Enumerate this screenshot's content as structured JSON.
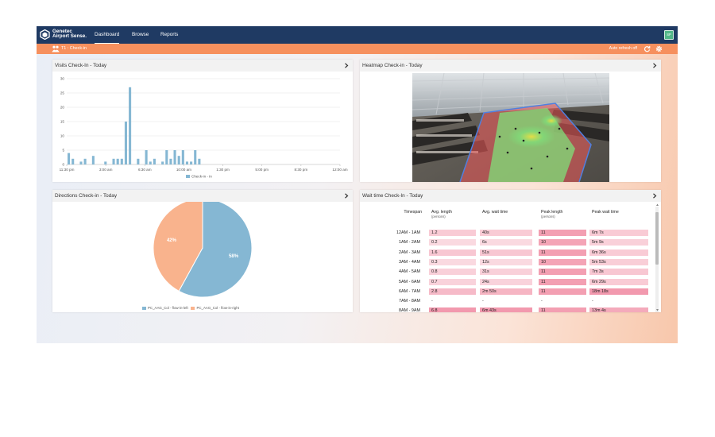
{
  "app": {
    "logo_line1": "Genetec",
    "logo_line2": "Airport Sense.",
    "nav": [
      "Dashboard",
      "Browse",
      "Reports"
    ],
    "active_nav": "Dashboard",
    "avatar": "SP",
    "subtitle": "T1 : Check-in",
    "auto_refresh": "Auto refresh off"
  },
  "colors": {
    "topbar": "#1f3a63",
    "subbar": "#f6905e",
    "bar": "#85b7d3",
    "pie_left": "#85b7d3",
    "pie_right": "#f9b38d"
  },
  "panels": {
    "visits_title": "Visits Check-In - Today",
    "heatmap_title": "Heatmap Check-in - Today",
    "directions_title": "Directions Check-in - Today",
    "wait_title": "Wait time Check-In - Today"
  },
  "chart_data": [
    {
      "type": "bar",
      "title": "Visits Check-In - Today",
      "yticks": [
        "0",
        "5",
        "10",
        "15",
        "20",
        "25",
        "30"
      ],
      "ylim": [
        0,
        30
      ],
      "xticks": [
        "11:30 pm",
        "3:00 am",
        "6:30 am",
        "10:00 am",
        "1:30 pm",
        "5:00 pm",
        "8:30 pm",
        "12:00 am"
      ],
      "grid": true,
      "legend_position": "bottom",
      "series": [
        {
          "name": "Check-in - in",
          "values": [
            4,
            2,
            0,
            1,
            2,
            0,
            3,
            0,
            0,
            1,
            0,
            2,
            2,
            2,
            15,
            27,
            0,
            2,
            0,
            5,
            1,
            2,
            0,
            1,
            5,
            2,
            5,
            3,
            5,
            1,
            1,
            5,
            2,
            0,
            0,
            0,
            0,
            0,
            0,
            0,
            0,
            0,
            0,
            0,
            0,
            0,
            0,
            0,
            0,
            0,
            0,
            0,
            0,
            0,
            0,
            0,
            0,
            0,
            0,
            0,
            0,
            0,
            0,
            0,
            0,
            0,
            0
          ]
        }
      ]
    },
    {
      "type": "pie",
      "title": "Directions Check-in - Today",
      "categories": [
        "PC_AAG_Col - flow-in-left",
        "PC_AAG_Col - flow-in-right"
      ],
      "values": [
        58,
        42
      ],
      "labels": [
        "58%",
        "42%"
      ],
      "legend_position": "bottom"
    },
    {
      "type": "table",
      "title": "Wait time Check-In - Today",
      "columns": [
        {
          "label": "Timespan",
          "sub": ""
        },
        {
          "label": "Avg. length",
          "sub": "(persons)"
        },
        {
          "label": "Avg. wait time",
          "sub": ""
        },
        {
          "label": "Peak length",
          "sub": "(persons)"
        },
        {
          "label": "Peak wait time",
          "sub": ""
        }
      ],
      "rows": [
        [
          "12AM - 1AM",
          "1.2",
          "40s",
          "11",
          "6m 7s"
        ],
        [
          "1AM - 2AM",
          "0.2",
          "6s",
          "10",
          "5m 9s"
        ],
        [
          "2AM - 3AM",
          "1.6",
          "51s",
          "11",
          "6m 36s"
        ],
        [
          "3AM - 4AM",
          "0.3",
          "12s",
          "10",
          "5m 53s"
        ],
        [
          "4AM - 5AM",
          "0.8",
          "31s",
          "11",
          "7m 3s"
        ],
        [
          "5AM - 6AM",
          "0.7",
          "24s",
          "11",
          "6m 29s"
        ],
        [
          "6AM - 7AM",
          "2.8",
          "2m 50s",
          "11",
          "18m 18s"
        ],
        [
          "7AM - 8AM",
          "-",
          "-",
          "-",
          "-"
        ],
        [
          "8AM - 9AM",
          "6.8",
          "6m 43s",
          "11",
          "13m 4s"
        ]
      ],
      "row_intensity": [
        [
          0.25,
          0.25,
          0.65,
          0.25
        ],
        [
          0.12,
          0.12,
          0.6,
          0.2
        ],
        [
          0.28,
          0.28,
          0.65,
          0.25
        ],
        [
          0.12,
          0.12,
          0.6,
          0.22
        ],
        [
          0.2,
          0.2,
          0.65,
          0.28
        ],
        [
          0.18,
          0.18,
          0.65,
          0.25
        ],
        [
          0.4,
          0.45,
          0.65,
          0.7
        ],
        [
          0,
          0,
          0,
          0
        ],
        [
          0.7,
          0.7,
          0.65,
          0.55
        ]
      ]
    }
  ]
}
